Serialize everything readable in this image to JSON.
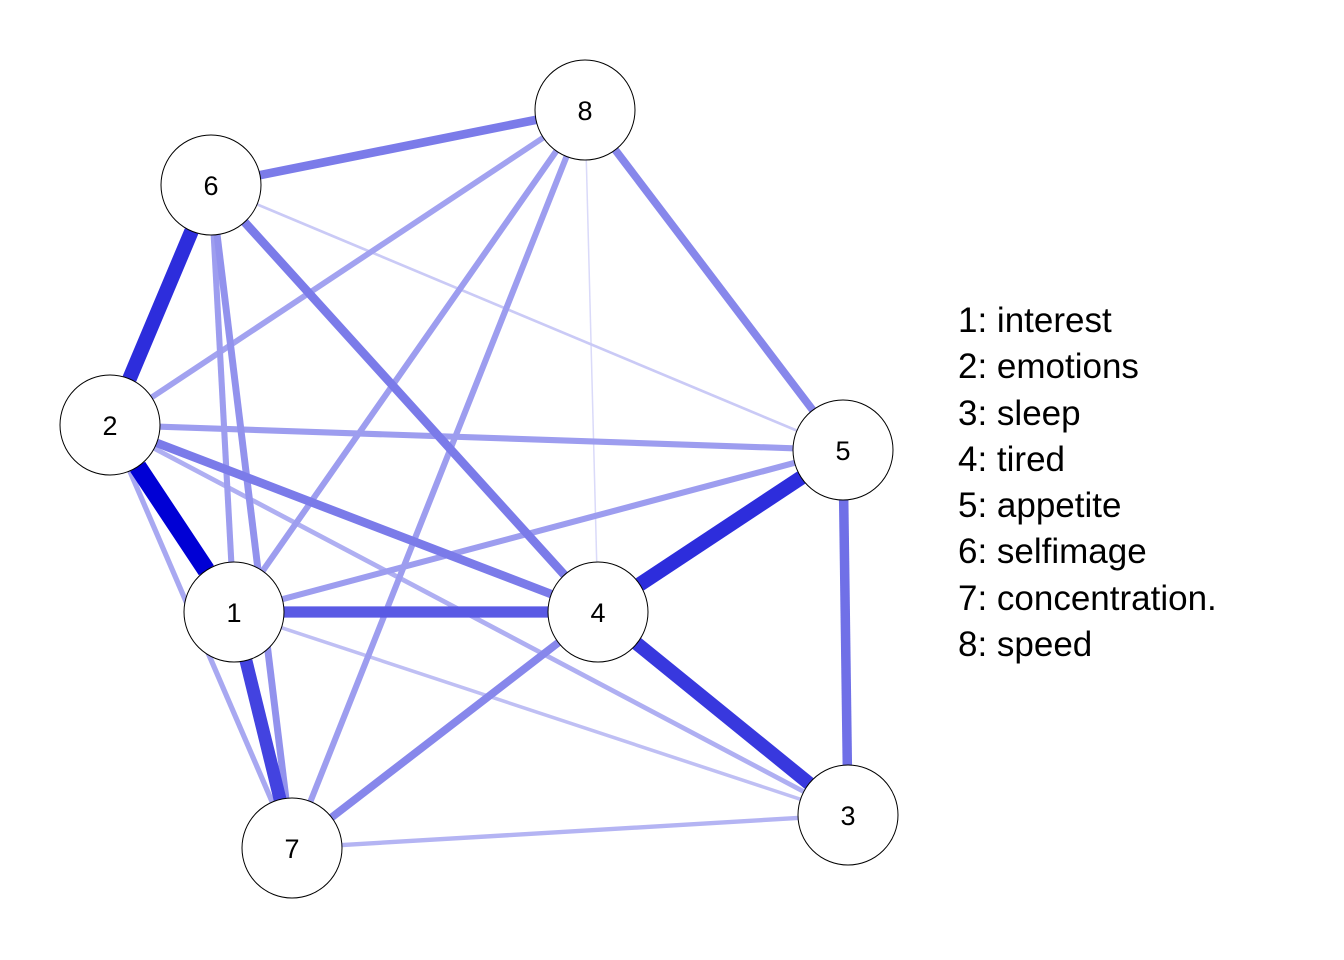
{
  "nodes": [
    {
      "id": "1",
      "label": "1"
    },
    {
      "id": "2",
      "label": "2"
    },
    {
      "id": "3",
      "label": "3"
    },
    {
      "id": "4",
      "label": "4"
    },
    {
      "id": "5",
      "label": "5"
    },
    {
      "id": "6",
      "label": "6"
    },
    {
      "id": "7",
      "label": "7"
    },
    {
      "id": "8",
      "label": "8"
    }
  ],
  "edges": [
    {
      "source": "1",
      "target": "2",
      "weight": 1.0
    },
    {
      "source": "2",
      "target": "6",
      "weight": 0.8
    },
    {
      "source": "4",
      "target": "5",
      "weight": 0.8
    },
    {
      "source": "4",
      "target": "3",
      "weight": 0.75
    },
    {
      "source": "1",
      "target": "7",
      "weight": 0.7
    },
    {
      "source": "1",
      "target": "4",
      "weight": 0.6
    },
    {
      "source": "5",
      "target": "3",
      "weight": 0.5
    },
    {
      "source": "6",
      "target": "8",
      "weight": 0.45
    },
    {
      "source": "6",
      "target": "4",
      "weight": 0.45
    },
    {
      "source": "2",
      "target": "4",
      "weight": 0.45
    },
    {
      "source": "8",
      "target": "5",
      "weight": 0.4
    },
    {
      "source": "7",
      "target": "4",
      "weight": 0.4
    },
    {
      "source": "6",
      "target": "7",
      "weight": 0.35
    },
    {
      "source": "8",
      "target": "7",
      "weight": 0.3
    },
    {
      "source": "8",
      "target": "1",
      "weight": 0.3
    },
    {
      "source": "2",
      "target": "5",
      "weight": 0.3
    },
    {
      "source": "1",
      "target": "5",
      "weight": 0.3
    },
    {
      "source": "6",
      "target": "1",
      "weight": 0.3
    },
    {
      "source": "2",
      "target": "8",
      "weight": 0.28
    },
    {
      "source": "2",
      "target": "7",
      "weight": 0.25
    },
    {
      "source": "2",
      "target": "3",
      "weight": 0.22
    },
    {
      "source": "7",
      "target": "3",
      "weight": 0.2
    },
    {
      "source": "1",
      "target": "3",
      "weight": 0.15
    },
    {
      "source": "6",
      "target": "5",
      "weight": 0.1
    },
    {
      "source": "8",
      "target": "4",
      "weight": 0.03
    }
  ],
  "legend": [
    "1: interest",
    "2: emotions",
    "3: sleep",
    "4: tired",
    "5: appetite",
    "6: selfimage",
    "7: concentration.",
    "8: speed"
  ],
  "colors": {
    "edge_positive": "#0000d5",
    "node_fill": "#ffffff",
    "node_border": "#000000",
    "background": "#ffffff"
  }
}
